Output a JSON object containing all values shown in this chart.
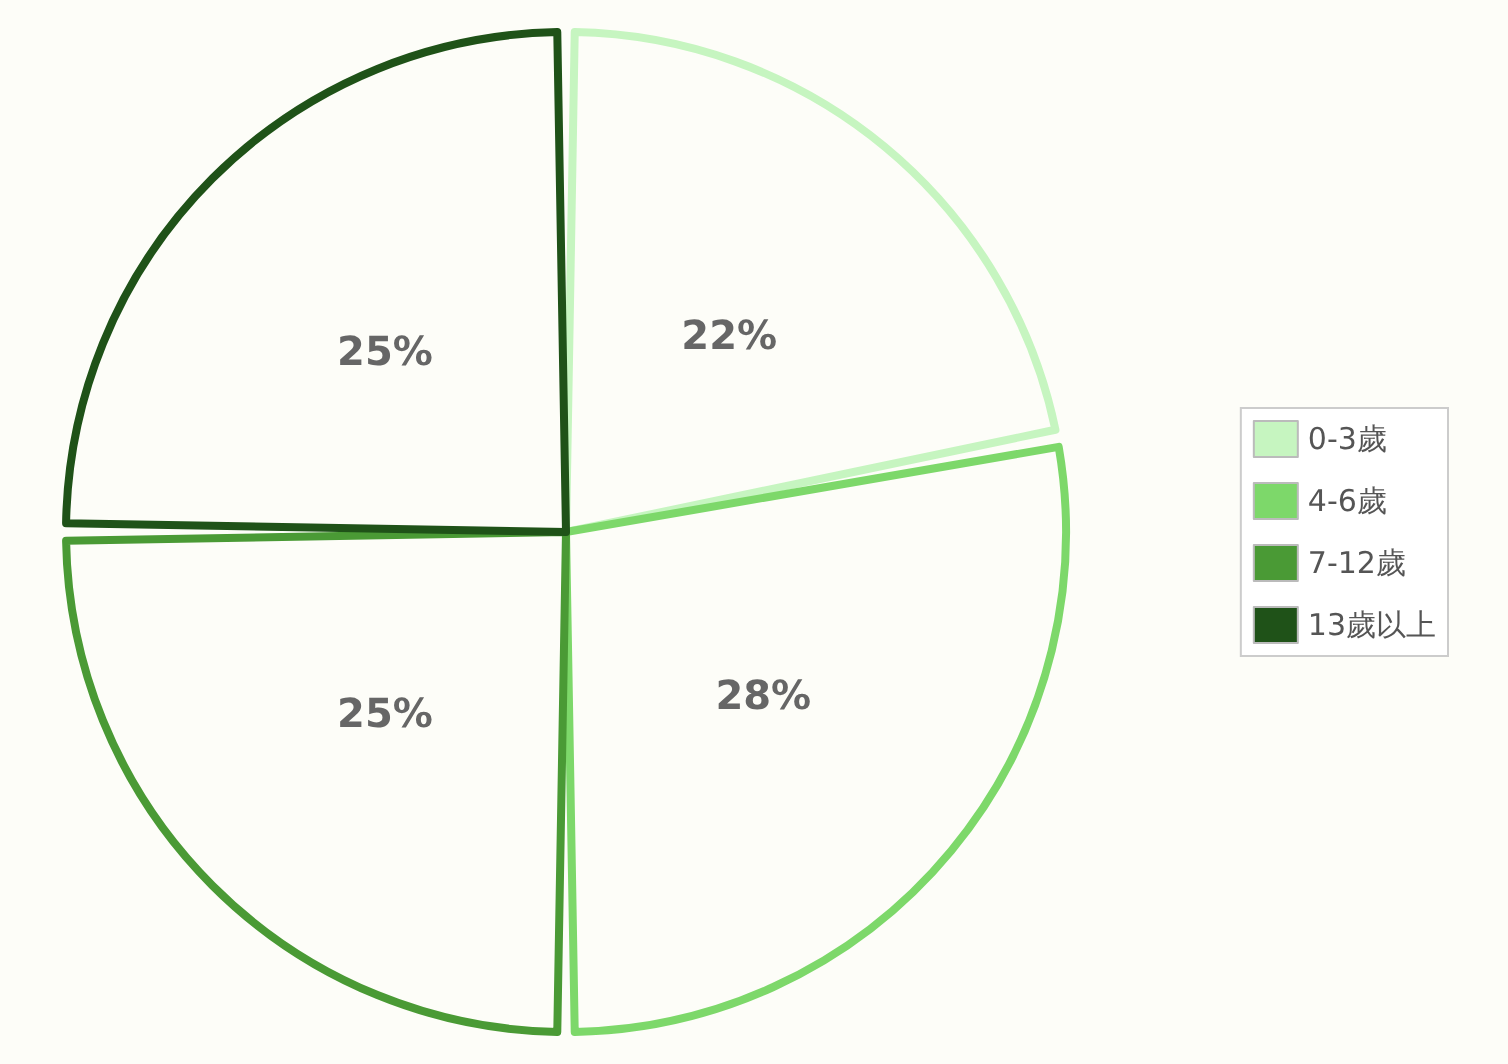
{
  "chart_data": {
    "type": "pie",
    "categories": [
      "0-3歲",
      "4-6歲",
      "7-12歲",
      "13歲以上"
    ],
    "values": [
      22,
      28,
      25,
      25
    ],
    "colors": [
      "#c6f5c0",
      "#7dd86a",
      "#4a9a35",
      "#1f5218"
    ],
    "value_labels": [
      "22%",
      "28%",
      "25%",
      "25%"
    ],
    "legend": "right"
  }
}
